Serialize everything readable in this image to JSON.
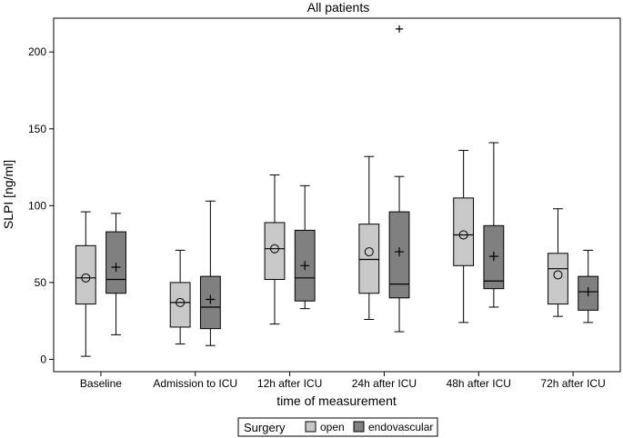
{
  "chart_data": {
    "type": "boxplot",
    "title": "All patients",
    "xlabel": "time of measurement",
    "ylabel": "SLPI [ng/ml]",
    "ylim": [
      -8,
      222
    ],
    "yticks": [
      0,
      50,
      100,
      150,
      200
    ],
    "categories": [
      "Baseline",
      "Admission to ICU",
      "12h after ICU",
      "24h after ICU",
      "48h after ICU",
      "72h after ICU"
    ],
    "legend": {
      "title": "Surgery",
      "position": "bottom-center",
      "entries": [
        "open",
        "endovascular"
      ]
    },
    "series": [
      {
        "name": "open",
        "color": "#c8c8c8",
        "mean_marker": "circle",
        "boxes": [
          {
            "min": 2,
            "q1": 36,
            "median": 53,
            "q3": 74,
            "max": 96,
            "mean": 53,
            "outliers": []
          },
          {
            "min": 10,
            "q1": 21,
            "median": 37,
            "q3": 50,
            "max": 71,
            "mean": 37,
            "outliers": []
          },
          {
            "min": 23,
            "q1": 52,
            "median": 72,
            "q3": 89,
            "max": 120,
            "mean": 72,
            "outliers": []
          },
          {
            "min": 26,
            "q1": 43,
            "median": 65,
            "q3": 88,
            "max": 132,
            "mean": 70,
            "outliers": []
          },
          {
            "min": 24,
            "q1": 61,
            "median": 81,
            "q3": 105,
            "max": 136,
            "mean": 81,
            "outliers": []
          },
          {
            "min": 28,
            "q1": 36,
            "median": 59,
            "q3": 69,
            "max": 98,
            "mean": 55,
            "outliers": []
          }
        ]
      },
      {
        "name": "endovascular",
        "color": "#808080",
        "mean_marker": "plus",
        "boxes": [
          {
            "min": 16,
            "q1": 43,
            "median": 52,
            "q3": 83,
            "max": 95,
            "mean": 60,
            "outliers": []
          },
          {
            "min": 9,
            "q1": 20,
            "median": 34,
            "q3": 54,
            "max": 103,
            "mean": 39,
            "outliers": []
          },
          {
            "min": 33,
            "q1": 38,
            "median": 53,
            "q3": 84,
            "max": 113,
            "mean": 61,
            "outliers": []
          },
          {
            "min": 18,
            "q1": 40,
            "median": 49,
            "q3": 96,
            "max": 119,
            "mean": 70,
            "outliers": [
              215
            ]
          },
          {
            "min": 34,
            "q1": 46,
            "median": 51,
            "q3": 87,
            "max": 141,
            "mean": 67,
            "outliers": []
          },
          {
            "min": 24,
            "q1": 32,
            "median": 44,
            "q3": 54,
            "max": 71,
            "mean": 44,
            "outliers": []
          }
        ]
      }
    ]
  }
}
